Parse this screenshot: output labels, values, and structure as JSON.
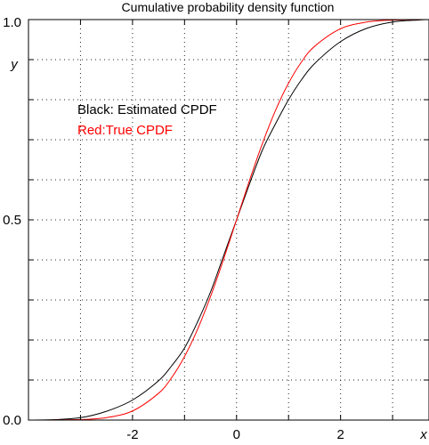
{
  "chart_data": {
    "type": "line",
    "title": "Cumulative probability density function",
    "xlabel": "x",
    "ylabel": "y",
    "xlim": [
      -4,
      3.7
    ],
    "ylim": [
      0,
      1
    ],
    "grid": true,
    "x_ticks": [
      -4,
      -3,
      -2,
      -1,
      0,
      1,
      2,
      3
    ],
    "x_tick_labels": [
      {
        "value": -2,
        "text": "-2"
      },
      {
        "value": 0,
        "text": "0"
      },
      {
        "value": 2,
        "text": "2"
      }
    ],
    "y_ticks": [
      0,
      0.1,
      0.2,
      0.3,
      0.4,
      0.5,
      0.6,
      0.7,
      0.8,
      0.9,
      1.0
    ],
    "y_tick_labels": [
      {
        "value": 0,
        "text": "0.0"
      },
      {
        "value": 0.5,
        "text": "0.5"
      },
      {
        "value": 1,
        "text": "1.0"
      }
    ],
    "annotations": [
      {
        "text": "Black: Estimated CPDF",
        "color": "#000000"
      },
      {
        "text": "Red:True CPDF",
        "color": "#ff0000"
      }
    ],
    "series": [
      {
        "color": "#000000",
        "x": [
          -4.0,
          -3.5,
          -3.0,
          -2.5,
          -2.0,
          -1.5,
          -1.25,
          -1.0,
          -0.75,
          -0.5,
          -0.25,
          0.0,
          0.25,
          0.5,
          0.75,
          1.0,
          1.25,
          1.5,
          2.0,
          2.5,
          3.0,
          3.5,
          3.7
        ],
        "y": [
          0.0,
          0.001,
          0.006,
          0.022,
          0.05,
          0.098,
          0.135,
          0.18,
          0.245,
          0.32,
          0.41,
          0.5,
          0.59,
          0.675,
          0.74,
          0.8,
          0.85,
          0.89,
          0.945,
          0.978,
          0.994,
          0.999,
          1.0
        ]
      },
      {
        "color": "#ff0000",
        "x": [
          -4.0,
          -3.5,
          -3.0,
          -2.5,
          -2.0,
          -1.5,
          -1.25,
          -1.0,
          -0.75,
          -0.5,
          -0.25,
          0.0,
          0.25,
          0.5,
          0.75,
          1.0,
          1.25,
          1.5,
          2.0,
          2.5,
          3.0,
          3.5,
          3.7
        ],
        "y": [
          0.0,
          0.0002,
          0.0013,
          0.0062,
          0.0228,
          0.0668,
          0.1056,
          0.1587,
          0.2266,
          0.3085,
          0.4013,
          0.5,
          0.5987,
          0.6915,
          0.7734,
          0.8413,
          0.8944,
          0.9332,
          0.9772,
          0.9938,
          0.9987,
          0.9998,
          0.9999
        ]
      }
    ]
  }
}
